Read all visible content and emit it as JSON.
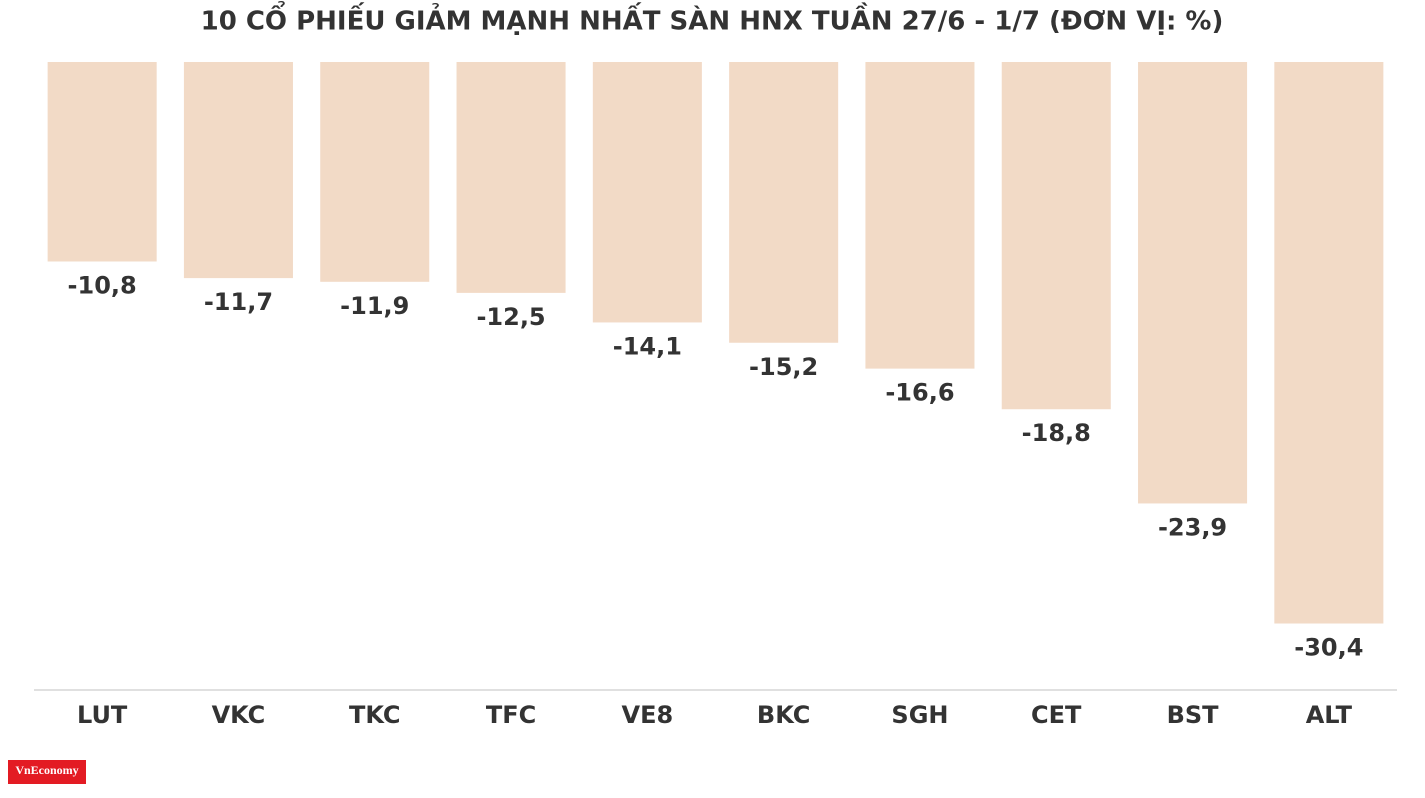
{
  "chart_data": {
    "type": "bar",
    "title": "10 CỔ PHIẾU GIẢM MẠNH NHẤT SÀN HNX TUẦN 27/6 - 1/7 (ĐƠN VỊ: %)",
    "categories": [
      "LUT",
      "VKC",
      "TKC",
      "TFC",
      "VE8",
      "BKC",
      "SGH",
      "CET",
      "BST",
      "ALT"
    ],
    "values": [
      -10.8,
      -11.7,
      -11.9,
      -12.5,
      -14.1,
      -15.2,
      -16.6,
      -18.8,
      -23.9,
      -30.4
    ],
    "value_labels": [
      "-10,8",
      "-11,7",
      "-11,9",
      "-12,5",
      "-14,1",
      "-15,2",
      "-16,6",
      "-18,8",
      "-23,9",
      "-30,4"
    ],
    "color": "#f2dac6",
    "ylim": [
      -34,
      0
    ],
    "logo": "VnEconomy"
  }
}
